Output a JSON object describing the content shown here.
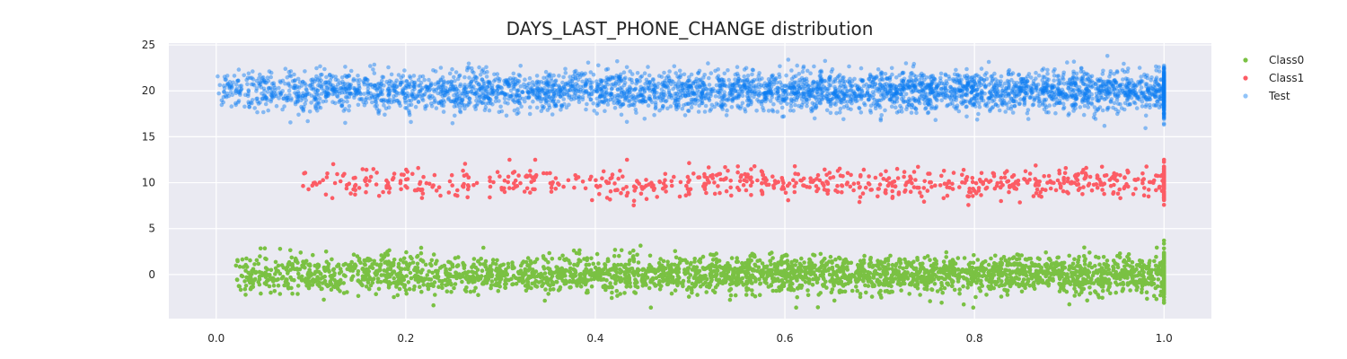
{
  "chart_data": {
    "type": "scatter",
    "title": "DAYS_LAST_PHONE_CHANGE distribution",
    "xlabel": "",
    "ylabel": "",
    "xlim": [
      -0.05,
      1.05
    ],
    "ylim": [
      -4.8,
      25.2
    ],
    "x_ticks": [
      0.0,
      0.2,
      0.4,
      0.6,
      0.8,
      1.0
    ],
    "x_tick_labels": [
      "0.0",
      "0.2",
      "0.4",
      "0.6",
      "0.8",
      "1.0"
    ],
    "y_ticks": [
      0,
      5,
      10,
      15,
      20,
      25
    ],
    "y_tick_labels": [
      "0",
      "5",
      "10",
      "15",
      "20",
      "25"
    ],
    "grid": true,
    "legend_position": "outside-top-right",
    "background": "#eaeaf2",
    "series": [
      {
        "name": "Class0",
        "color": "#7ac143",
        "opacity": 1.0,
        "center_y": 0,
        "x_start": 0.02,
        "x_end": 1.0,
        "spread_y": 1.0,
        "min_y": -3.6,
        "max_y": 3.7,
        "count": 3000,
        "edge_count": 160
      },
      {
        "name": "Class1",
        "color": "#fc5c65",
        "opacity": 1.0,
        "center_y": 10,
        "x_start": 0.085,
        "x_end": 1.0,
        "spread_y": 0.8,
        "min_y": 7.0,
        "max_y": 12.5,
        "count": 700,
        "edge_count": 80
      },
      {
        "name": "Test",
        "color": "#0a7df2",
        "opacity": 0.45,
        "center_y": 20,
        "x_start": 0.0,
        "x_end": 1.0,
        "spread_y": 1.1,
        "min_y": 15.4,
        "max_y": 23.8,
        "count": 3800,
        "edge_count": 180
      }
    ]
  }
}
